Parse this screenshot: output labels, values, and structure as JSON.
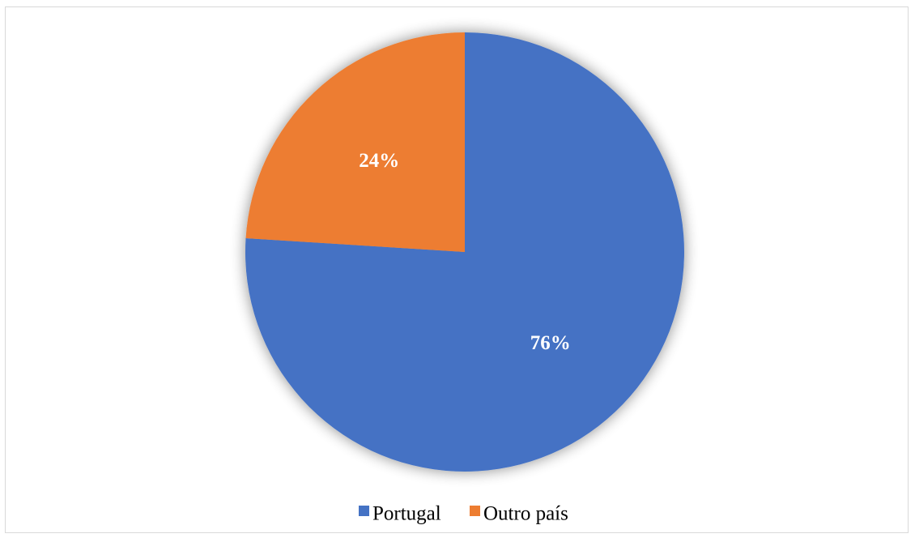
{
  "chart_data": {
    "type": "pie",
    "categories": [
      "Portugal",
      "Outro país"
    ],
    "values": [
      76,
      24
    ],
    "labels": [
      "76%",
      "24%"
    ],
    "colors": [
      "#4472C4",
      "#ED7D31"
    ],
    "legend": "bottom",
    "start": "12 o'clock",
    "direction": "clockwise"
  }
}
